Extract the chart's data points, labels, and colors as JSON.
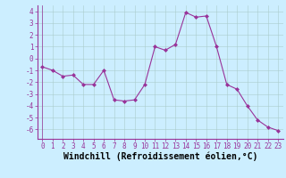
{
  "x": [
    0,
    1,
    2,
    3,
    4,
    5,
    6,
    7,
    8,
    9,
    10,
    11,
    12,
    13,
    14,
    15,
    16,
    17,
    18,
    19,
    20,
    21,
    22,
    23
  ],
  "y": [
    -0.7,
    -1.0,
    -1.5,
    -1.4,
    -2.2,
    -2.2,
    -1.0,
    -3.5,
    -3.6,
    -3.5,
    -2.2,
    1.0,
    0.7,
    1.2,
    3.9,
    3.5,
    3.6,
    1.0,
    -2.2,
    -2.6,
    -4.0,
    -5.2,
    -5.8,
    -6.1
  ],
  "line_color": "#993399",
  "marker": "D",
  "marker_size": 2,
  "background_color": "#cceeff",
  "grid_color": "#aacccc",
  "xlabel": "Windchill (Refroidissement éolien,°C)",
  "xlabel_fontsize": 7,
  "ylim": [
    -6.8,
    4.5
  ],
  "xlim": [
    -0.5,
    23.5
  ],
  "yticks": [
    -6,
    -5,
    -4,
    -3,
    -2,
    -1,
    0,
    1,
    2,
    3,
    4
  ],
  "xticks": [
    0,
    1,
    2,
    3,
    4,
    5,
    6,
    7,
    8,
    9,
    10,
    11,
    12,
    13,
    14,
    15,
    16,
    17,
    18,
    19,
    20,
    21,
    22,
    23
  ],
  "tick_fontsize": 5.5
}
